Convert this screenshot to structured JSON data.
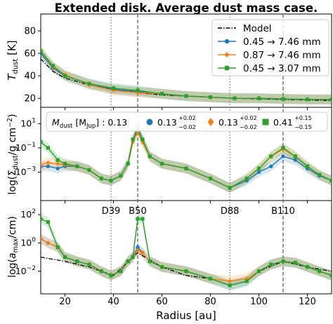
{
  "figure": {
    "title": "Extended disk. Average dust mass case.",
    "xlabel": "Radius [au]"
  },
  "colors": {
    "blue": "#1f77b4",
    "orange": "#ff7f0e",
    "green": "#2ca02c",
    "model": "#000000",
    "line_gray": "#555555"
  },
  "legend_top": {
    "entries": [
      {
        "label": "Model",
        "color": "#000000",
        "marker": "none",
        "style": "dashdot"
      },
      {
        "label": "0.45  → 7.46 mm",
        "color": "#1f77b4",
        "marker": "circle"
      },
      {
        "label": "0.87  → 7.46 mm",
        "color": "#ff7f0e",
        "marker": "diamond"
      },
      {
        "label": "0.45  → 3.07 mm",
        "color": "#2ca02c",
        "marker": "square"
      }
    ]
  },
  "legend_mid": {
    "prefix_main": "M",
    "prefix_sub": "dust",
    "prefix_unit_open": " [M",
    "prefix_unit_sub": "Jup",
    "prefix_unit_close": "] : 0.13",
    "entries": [
      {
        "value": "0.13",
        "sup": "+0.02",
        "sub": "−0.02",
        "color": "#1f77b4",
        "marker": "circle"
      },
      {
        "value": "0.13",
        "sup": "+0.02",
        "sub": "−0.02",
        "color": "#ff7f0e",
        "marker": "diamond"
      },
      {
        "value": "0.41",
        "sup": "+0.15",
        "sub": "−0.15",
        "color": "#2ca02c",
        "marker": "square"
      }
    ]
  },
  "chart_data": [
    {
      "type": "line",
      "panel": "top",
      "ylabel": "T_dust [K]",
      "xlim": [
        10,
        130
      ],
      "ylim": [
        12,
        95
      ],
      "yticks": [
        20,
        40,
        60,
        80
      ],
      "xticks": [
        20,
        40,
        60,
        80,
        100,
        120
      ],
      "series": [
        {
          "name": "Model",
          "x": [
            10,
            15,
            20,
            30,
            40,
            50,
            60,
            70,
            80,
            90,
            100,
            110,
            120,
            130
          ],
          "y": [
            55,
            44,
            38,
            32,
            28,
            25,
            23,
            22,
            21,
            20,
            19.5,
            19,
            18.5,
            18
          ]
        },
        {
          "name": "0.45 → 7.46 mm",
          "x": [
            10,
            15,
            20,
            30,
            40,
            50,
            60,
            70,
            80,
            90,
            100,
            110,
            120,
            130
          ],
          "y": [
            60,
            47,
            40,
            33,
            28,
            26,
            24,
            22,
            21,
            20,
            20,
            19.5,
            19,
            19
          ]
        },
        {
          "name": "0.87 → 7.46 mm",
          "x": [
            10,
            15,
            20,
            30,
            40,
            50,
            60,
            70,
            80,
            90,
            100,
            110,
            120,
            130
          ],
          "y": [
            62,
            48,
            41,
            32,
            27,
            25,
            24,
            22,
            21,
            20,
            20,
            19.5,
            19,
            19
          ]
        },
        {
          "name": "0.45 → 3.07 mm",
          "x": [
            10,
            15,
            20,
            30,
            40,
            50,
            60,
            70,
            80,
            90,
            100,
            110,
            120,
            130
          ],
          "y": [
            62,
            49,
            40,
            33,
            29,
            27,
            24,
            22,
            21,
            20,
            20,
            19.5,
            19,
            19
          ]
        }
      ]
    },
    {
      "type": "line",
      "panel": "middle",
      "ylabel": "log(Σ_dust/g cm^-2)",
      "xlim": [
        10,
        130
      ],
      "log_y": true,
      "ylim": [
        1e-05,
        100
      ],
      "yticks": [
        "10^-3",
        "10^-1",
        "10^1"
      ],
      "series": [
        {
          "name": "0.45 → 7.46 mm",
          "x": [
            10,
            13,
            17,
            20,
            25,
            30,
            35,
            39,
            43,
            46,
            48,
            50,
            52,
            55,
            60,
            70,
            80,
            88,
            95,
            100,
            105,
            110,
            115,
            120,
            125,
            130
          ],
          "y": [
            0.003,
            0.003,
            0.002,
            0.003,
            0.003,
            0.0015,
            0.0003,
            0.0002,
            0.0005,
            0.005,
            0.5,
            3,
            0.5,
            0.02,
            0.005,
            0.002,
            0.0003,
            5e-05,
            0.0002,
            0.001,
            0.003,
            0.02,
            0.01,
            0.002,
            0.0005,
            0.0002
          ]
        },
        {
          "name": "0.87 → 7.46 mm",
          "x": [
            10,
            13,
            17,
            20,
            25,
            30,
            35,
            39,
            43,
            46,
            48,
            50,
            52,
            55,
            60,
            70,
            80,
            88,
            95,
            100,
            105,
            110,
            115,
            120,
            125,
            130
          ],
          "y": [
            0.004,
            0.006,
            0.005,
            0.004,
            0.003,
            0.0015,
            0.0003,
            0.0002,
            0.0005,
            0.005,
            0.3,
            2,
            0.3,
            0.02,
            0.005,
            0.002,
            0.0003,
            5e-05,
            0.0003,
            0.002,
            0.02,
            0.08,
            0.02,
            0.003,
            0.0006,
            0.0002
          ]
        },
        {
          "name": "0.45 → 3.07 mm",
          "x": [
            10,
            13,
            17,
            20,
            25,
            30,
            35,
            39,
            43,
            46,
            48,
            50,
            52,
            55,
            60,
            70,
            80,
            88,
            95,
            100,
            105,
            110,
            115,
            120,
            125,
            130
          ],
          "y": [
            0.3,
            0.1,
            0.01,
            0.005,
            0.003,
            0.0015,
            0.0003,
            0.0002,
            0.0005,
            0.005,
            0.5,
            5,
            0.5,
            0.02,
            0.005,
            0.002,
            0.0003,
            5e-05,
            0.0003,
            0.002,
            0.02,
            0.1,
            0.02,
            0.003,
            0.0006,
            0.0002
          ]
        }
      ]
    },
    {
      "type": "line",
      "panel": "bottom",
      "ylabel": "log(a_max/cm)",
      "xlim": [
        10,
        130
      ],
      "log_y": true,
      "ylim": [
        0.0005,
        500
      ],
      "yticks": [
        "10^-2",
        "10^0",
        "10^2"
      ],
      "series": [
        {
          "name": "Model",
          "x": [
            10,
            20,
            30,
            40,
            50,
            60,
            70,
            80,
            88,
            95,
            100,
            110,
            120,
            130
          ],
          "y": [
            0.1,
            0.05,
            0.02,
            0.005,
            0.2,
            0.02,
            0.005,
            0.003,
            0.001,
            0.002,
            0.01,
            0.05,
            0.02,
            0.01
          ]
        },
        {
          "name": "0.45 → 7.46 mm",
          "x": [
            10,
            13,
            17,
            20,
            25,
            30,
            35,
            39,
            43,
            46,
            48,
            50,
            52,
            55,
            60,
            70,
            80,
            88,
            95,
            100,
            105,
            110,
            115,
            120,
            125,
            130
          ],
          "y": [
            2,
            1,
            0.5,
            0.1,
            0.05,
            0.03,
            0.01,
            0.005,
            0.01,
            0.05,
            0.1,
            0.5,
            0.2,
            0.05,
            0.02,
            0.01,
            0.003,
            0.001,
            0.002,
            0.01,
            0.03,
            0.05,
            0.04,
            0.02,
            0.01,
            0.005
          ]
        },
        {
          "name": "0.87 → 7.46 mm",
          "x": [
            10,
            13,
            17,
            20,
            25,
            30,
            35,
            39,
            43,
            46,
            48,
            50,
            52,
            55,
            60,
            70,
            80,
            88,
            95,
            100,
            105,
            110,
            115,
            120,
            125,
            130
          ],
          "y": [
            2,
            1,
            0.5,
            0.1,
            0.05,
            0.03,
            0.01,
            0.005,
            0.01,
            0.05,
            0.1,
            0.3,
            0.2,
            0.05,
            0.02,
            0.01,
            0.003,
            0.002,
            0.003,
            0.01,
            0.03,
            0.05,
            0.04,
            0.02,
            0.01,
            0.005
          ]
        },
        {
          "name": "0.45 → 3.07 mm",
          "x": [
            10,
            13,
            17,
            20,
            25,
            30,
            35,
            39,
            43,
            46,
            48,
            50,
            52,
            55,
            60,
            70,
            80,
            88,
            95,
            100,
            105,
            110,
            115,
            120,
            125,
            130
          ],
          "y": [
            50,
            30,
            0.5,
            0.1,
            0.05,
            0.03,
            0.01,
            0.005,
            0.01,
            0.05,
            0.1,
            50,
            50,
            0.05,
            0.02,
            0.01,
            0.003,
            0.001,
            0.002,
            0.01,
            0.03,
            0.05,
            0.04,
            0.02,
            0.01,
            0.005
          ]
        }
      ]
    }
  ],
  "markers": {
    "gaps": [
      {
        "x": 39,
        "style": "dotted"
      },
      {
        "x": 50,
        "style": "dashed"
      },
      {
        "x": 88,
        "style": "dotted"
      },
      {
        "x": 110,
        "style": "dashed"
      }
    ],
    "labels": [
      {
        "x": 39,
        "text": "D39"
      },
      {
        "x": 50,
        "text": "B50"
      },
      {
        "x": 88,
        "text": "D88"
      },
      {
        "x": 110,
        "text": "B110"
      }
    ]
  }
}
